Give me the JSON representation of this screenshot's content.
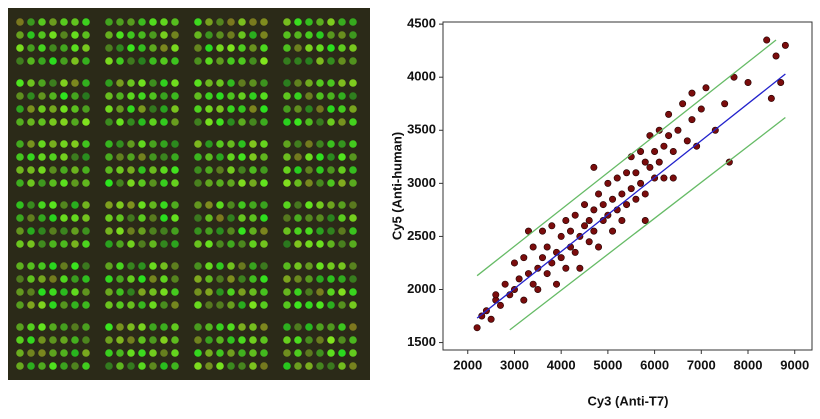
{
  "chart_data": {
    "type": "scatter",
    "x_label": "Cy3 (Anti-T7)",
    "y_label": "Cy5 (Anti-human)",
    "xlim": [
      1470,
      9370
    ],
    "ylim": [
      1430,
      4520
    ],
    "xticks": [
      2000,
      3000,
      4000,
      5000,
      6000,
      7000,
      8000,
      9000
    ],
    "yticks": [
      1500,
      2000,
      2500,
      3000,
      3500,
      4000,
      4500
    ],
    "color": "#7a0c0c",
    "x": [
      2200,
      2300,
      2400,
      2500,
      2600,
      2700,
      2800,
      2900,
      3000,
      3000,
      3100,
      3200,
      3200,
      3300,
      3400,
      3400,
      3500,
      3500,
      3600,
      3600,
      3700,
      3700,
      3800,
      3800,
      3900,
      3900,
      4000,
      4000,
      4100,
      4100,
      4200,
      4200,
      4300,
      4300,
      4400,
      4400,
      4500,
      4500,
      4600,
      4600,
      4700,
      4700,
      4800,
      4800,
      4900,
      4900,
      5000,
      5000,
      5100,
      5100,
      5200,
      5200,
      5300,
      5300,
      5400,
      5400,
      5500,
      5500,
      5600,
      5600,
      5700,
      5700,
      5800,
      5800,
      5900,
      5900,
      6000,
      6000,
      6100,
      6100,
      6200,
      6200,
      6300,
      6300,
      6400,
      6500,
      6600,
      6700,
      6800,
      6900,
      7000,
      7100,
      7300,
      7500,
      7700,
      7600,
      8000,
      8400,
      8600,
      8800,
      8700,
      8500,
      6800,
      2600,
      3300,
      4700,
      5800,
      6400
    ],
    "y": [
      1640,
      1750,
      1800,
      1720,
      1900,
      1850,
      2050,
      1950,
      2000,
      2250,
      2100,
      1900,
      2300,
      2150,
      2050,
      2400,
      2200,
      2000,
      2300,
      2550,
      2150,
      2400,
      2250,
      2600,
      2350,
      2050,
      2500,
      2300,
      2650,
      2200,
      2400,
      2550,
      2700,
      2350,
      2500,
      2200,
      2600,
      2800,
      2450,
      2650,
      2750,
      2550,
      2900,
      2400,
      2650,
      2800,
      2700,
      3000,
      2550,
      2850,
      2750,
      3050,
      2900,
      2650,
      3100,
      2800,
      2950,
      3250,
      2850,
      3100,
      3000,
      3300,
      2900,
      3200,
      3150,
      3450,
      3050,
      3300,
      3500,
      3200,
      3350,
      3050,
      3450,
      3650,
      3300,
      3500,
      3750,
      3400,
      3600,
      3350,
      3700,
      3900,
      3500,
      3750,
      4000,
      3200,
      3950,
      4350,
      4200,
      4300,
      3950,
      3800,
      3850,
      1950,
      2550,
      3150,
      2650,
      3050
    ],
    "lines": [
      {
        "color": "#2222cc",
        "x": [
          2200,
          8800
        ],
        "y": [
          1730,
          4030
        ]
      },
      {
        "color": "#66bb66",
        "x": [
          2200,
          8600
        ],
        "y": [
          2130,
          4350
        ]
      },
      {
        "color": "#66bb66",
        "x": [
          2900,
          8800
        ],
        "y": [
          1620,
          3620
        ]
      }
    ]
  }
}
